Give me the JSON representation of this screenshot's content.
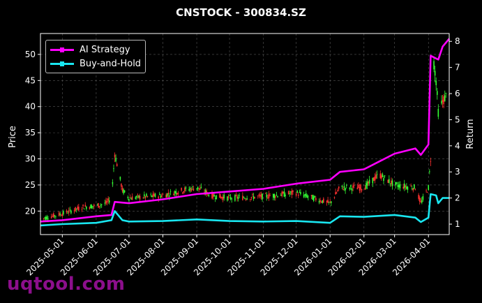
{
  "title": "CNSTOCK - 300834.SZ",
  "watermark": "uqtool.com",
  "colors": {
    "background": "#000000",
    "ai_strategy": "#ff00ff",
    "buy_and_hold": "#19e6f0",
    "candle_up": "#ff3030",
    "candle_down": "#33ff33",
    "grid": "#555555"
  },
  "chart_data": {
    "type": "line",
    "title": "CNSTOCK - 300834.SZ",
    "ylabel_left": "Price",
    "ylabel_right": "Return",
    "x_ticks": [
      "2025-05-01",
      "2025-06-01",
      "2025-07-01",
      "2025-08-01",
      "2025-09-01",
      "2025-10-01",
      "2025-11-01",
      "2025-12-01",
      "2026-01-01",
      "2026-02-01",
      "2026-03-01",
      "2026-04-01"
    ],
    "xlim": [
      "2025-04-11",
      "2026-04-20"
    ],
    "y_left_ticks": [
      20,
      25,
      30,
      35,
      40,
      45,
      50
    ],
    "y_left_lim": [
      15.5,
      54
    ],
    "y_right_ticks": [
      1,
      2,
      3,
      4,
      5,
      6,
      7,
      8
    ],
    "y_right_lim": [
      0.6,
      8.3
    ],
    "grid": true,
    "legend_position": "top-left",
    "series": [
      {
        "name": "AI Strategy",
        "axis": "right",
        "points": [
          [
            "2025-04-11",
            1.1
          ],
          [
            "2025-05-01",
            1.15
          ],
          [
            "2025-06-01",
            1.3
          ],
          [
            "2025-06-15",
            1.35
          ],
          [
            "2025-06-18",
            1.85
          ],
          [
            "2025-07-01",
            1.8
          ],
          [
            "2025-08-01",
            1.95
          ],
          [
            "2025-09-01",
            2.15
          ],
          [
            "2025-10-01",
            2.25
          ],
          [
            "2025-11-01",
            2.35
          ],
          [
            "2025-12-01",
            2.55
          ],
          [
            "2026-01-01",
            2.7
          ],
          [
            "2026-01-10",
            3.0
          ],
          [
            "2026-02-01",
            3.1
          ],
          [
            "2026-02-15",
            3.4
          ],
          [
            "2026-03-01",
            3.7
          ],
          [
            "2026-03-20",
            3.9
          ],
          [
            "2026-03-25",
            3.65
          ],
          [
            "2026-04-01",
            4.05
          ],
          [
            "2026-04-03",
            7.45
          ],
          [
            "2026-04-10",
            7.3
          ],
          [
            "2026-04-14",
            7.8
          ],
          [
            "2026-04-20",
            8.1
          ]
        ]
      },
      {
        "name": "Buy-and-Hold",
        "axis": "right",
        "points": [
          [
            "2025-04-11",
            0.95
          ],
          [
            "2025-05-01",
            1.0
          ],
          [
            "2025-06-01",
            1.05
          ],
          [
            "2025-06-15",
            1.15
          ],
          [
            "2025-06-18",
            1.5
          ],
          [
            "2025-06-25",
            1.15
          ],
          [
            "2025-07-01",
            1.1
          ],
          [
            "2025-08-01",
            1.12
          ],
          [
            "2025-09-01",
            1.18
          ],
          [
            "2025-10-01",
            1.12
          ],
          [
            "2025-11-01",
            1.1
          ],
          [
            "2025-12-01",
            1.12
          ],
          [
            "2026-01-01",
            1.05
          ],
          [
            "2026-01-10",
            1.3
          ],
          [
            "2026-02-01",
            1.28
          ],
          [
            "2026-03-01",
            1.35
          ],
          [
            "2026-03-20",
            1.25
          ],
          [
            "2026-03-25",
            1.08
          ],
          [
            "2026-04-01",
            1.25
          ],
          [
            "2026-04-03",
            2.15
          ],
          [
            "2026-04-08",
            2.1
          ],
          [
            "2026-04-10",
            1.8
          ],
          [
            "2026-04-14",
            2.0
          ],
          [
            "2026-04-20",
            2.0
          ]
        ]
      },
      {
        "name": "Price",
        "axis": "left",
        "kind": "candlestick",
        "points": [
          [
            "2025-04-11",
            18.5
          ],
          [
            "2025-05-01",
            19.5
          ],
          [
            "2025-05-20",
            20.8
          ],
          [
            "2025-06-01",
            21.0
          ],
          [
            "2025-06-10",
            21.5
          ],
          [
            "2025-06-15",
            22.5
          ],
          [
            "2025-06-18",
            31.0
          ],
          [
            "2025-06-25",
            24.0
          ],
          [
            "2025-07-01",
            22.5
          ],
          [
            "2025-08-01",
            23.0
          ],
          [
            "2025-08-15",
            23.8
          ],
          [
            "2025-09-01",
            24.5
          ],
          [
            "2025-09-15",
            23.0
          ],
          [
            "2025-10-01",
            22.5
          ],
          [
            "2025-11-01",
            22.8
          ],
          [
            "2025-12-01",
            23.5
          ],
          [
            "2026-01-01",
            21.5
          ],
          [
            "2026-01-10",
            24.5
          ],
          [
            "2026-02-01",
            24.5
          ],
          [
            "2026-02-15",
            27.0
          ],
          [
            "2026-03-01",
            25.0
          ],
          [
            "2026-03-20",
            24.5
          ],
          [
            "2026-03-25",
            21.5
          ],
          [
            "2026-04-01",
            24.5
          ],
          [
            "2026-04-03",
            30.0
          ],
          [
            "2026-04-05",
            50.0
          ],
          [
            "2026-04-08",
            45.0
          ],
          [
            "2026-04-10",
            39.0
          ],
          [
            "2026-04-14",
            41.0
          ],
          [
            "2026-04-20",
            43.0
          ]
        ]
      }
    ]
  },
  "legend": {
    "items": [
      {
        "label": "AI Strategy"
      },
      {
        "label": "Buy-and-Hold"
      }
    ]
  }
}
